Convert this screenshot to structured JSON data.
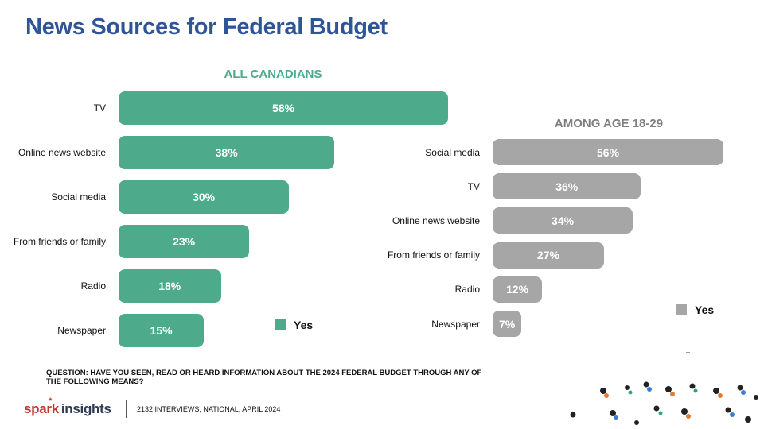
{
  "page_title": "News Sources for Federal Budget",
  "colors": {
    "title": "#2f5597",
    "green": "#4dab8c",
    "gray": "#a6a6a6"
  },
  "chart_data": [
    {
      "type": "bar",
      "orientation": "horizontal",
      "title": "ALL CANADIANS",
      "categories": [
        "TV",
        "Online news website",
        "Social media",
        "From friends or family",
        "Radio",
        "Newspaper"
      ],
      "series": [
        {
          "name": "Yes",
          "values": [
            58,
            38,
            30,
            23,
            18,
            15
          ]
        }
      ],
      "value_labels": [
        "58%",
        "38%",
        "30%",
        "23%",
        "18%",
        "15%"
      ],
      "xlim": [
        0,
        100
      ],
      "grid": false,
      "legend": "bottom-right"
    },
    {
      "type": "bar",
      "orientation": "horizontal",
      "title": "AMONG AGE 18-29",
      "categories": [
        "Social media",
        "TV",
        "Online news website",
        "From friends or family",
        "Radio",
        "Newspaper"
      ],
      "series": [
        {
          "name": "Yes",
          "values": [
            56,
            36,
            34,
            27,
            12,
            7
          ]
        }
      ],
      "value_labels": [
        "56%",
        "36%",
        "34%",
        "27%",
        "12%",
        "7%"
      ],
      "xlim": [
        0,
        100
      ],
      "grid": false,
      "legend": "bottom-right"
    }
  ],
  "question": "QUESTION: HAVE YOU SEEN, READ OR HEARD INFORMATION ABOUT THE 2024 FEDERAL BUDGET THROUGH ANY OF THE FOLLOWING MEANS?",
  "logo": {
    "spark": "spark",
    "insights": "insights"
  },
  "footnote": "2132 INTERVIEWS, NATIONAL, APRIL 2024"
}
